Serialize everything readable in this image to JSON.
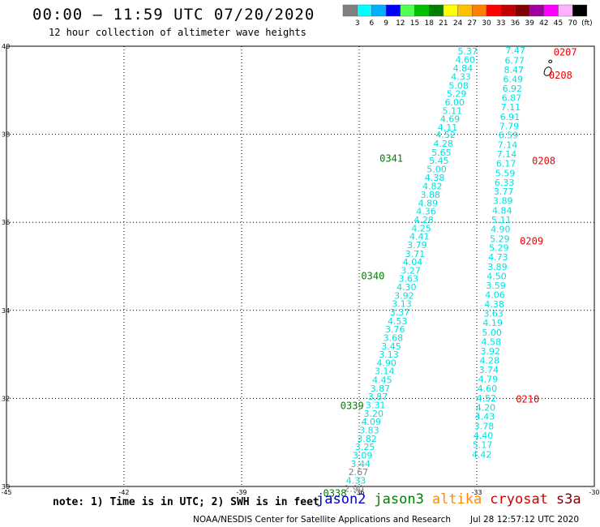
{
  "header": {
    "title": "00:00 – 11:59 UTC 07/20/2020",
    "subtitle": "12 hour collection of altimeter wave heights"
  },
  "colorbar": {
    "colors": [
      "#808080",
      "#00ffff",
      "#00b0ff",
      "#0000ff",
      "#50ff50",
      "#00c000",
      "#008000",
      "#ffff00",
      "#ffc000",
      "#ff8000",
      "#ff0000",
      "#c00000",
      "#800000",
      "#a000a0",
      "#ff00ff",
      "#ffb0ff",
      "#000000"
    ],
    "labels": [
      "3",
      "6",
      "9",
      "12",
      "15",
      "18",
      "21",
      "24",
      "27",
      "30",
      "33",
      "36",
      "39",
      "42",
      "45",
      "70",
      "(ft)"
    ]
  },
  "axes": {
    "x_ticks": [
      "-45",
      "-42",
      "-39",
      "-36",
      "-33",
      "-30"
    ],
    "y_ticks": [
      "40",
      "38",
      "36",
      "34",
      "32",
      "30"
    ]
  },
  "track_west": {
    "color": "#00e0e0",
    "points": [
      [
        "5.37",
        -32.98,
        39.89
      ],
      [
        "4.60",
        -33.04,
        39.7
      ],
      [
        "4.84",
        -33.1,
        39.5
      ],
      [
        "4.33",
        -33.15,
        39.31
      ],
      [
        "5.08",
        -33.21,
        39.11
      ],
      [
        "5.29",
        -33.26,
        38.92
      ],
      [
        "6.00",
        -33.31,
        38.73
      ],
      [
        "5.11",
        -33.37,
        38.54
      ],
      [
        "4.69",
        -33.43,
        38.35
      ],
      [
        "4.11",
        -33.49,
        38.16
      ],
      [
        "4.52",
        -33.54,
        37.99
      ],
      [
        "4.28",
        -33.6,
        37.79
      ],
      [
        "5.65",
        -33.65,
        37.59
      ],
      [
        "5.45",
        -33.71,
        37.4
      ],
      [
        "5.00",
        -33.77,
        37.21
      ],
      [
        "4.38",
        -33.82,
        37.02
      ],
      [
        "4.82",
        -33.88,
        36.82
      ],
      [
        "3.88",
        -33.93,
        36.63
      ],
      [
        "4.89",
        -33.99,
        36.44
      ],
      [
        "4.36",
        -34.04,
        36.25
      ],
      [
        "4.28",
        -34.1,
        36.06
      ],
      [
        "4.25",
        -34.16,
        35.87
      ],
      [
        "4.41",
        -34.21,
        35.68
      ],
      [
        "3.79",
        -34.27,
        35.49
      ],
      [
        "3.71",
        -34.32,
        35.29
      ],
      [
        "4.04",
        -34.38,
        35.1
      ],
      [
        "3.27",
        -34.43,
        34.91
      ],
      [
        "3.63",
        -34.49,
        34.72
      ],
      [
        "4.30",
        -34.54,
        34.53
      ],
      [
        "3.92",
        -34.6,
        34.34
      ],
      [
        "3.13",
        -34.66,
        34.15
      ],
      [
        "3.37",
        -34.71,
        33.96
      ],
      [
        "4.53",
        -34.77,
        33.76
      ],
      [
        "3.76",
        -34.83,
        33.57
      ],
      [
        "3.68",
        -34.88,
        33.38
      ],
      [
        "3.45",
        -34.93,
        33.19
      ],
      [
        "3.13",
        -34.99,
        33.0
      ],
      [
        "4.90",
        -35.05,
        32.81
      ],
      [
        "3.14",
        -35.1,
        32.62
      ],
      [
        "4.45",
        -35.16,
        32.42
      ],
      [
        "3.87",
        -35.21,
        32.23
      ],
      [
        "3.87",
        -35.27,
        32.04
      ],
      [
        "3.31",
        -35.33,
        31.85
      ],
      [
        "3.20",
        -35.38,
        31.66
      ],
      [
        "4.09",
        -35.44,
        31.47
      ],
      [
        "3.83",
        -35.49,
        31.28
      ],
      [
        "3.82",
        -35.55,
        31.09
      ],
      [
        "3.25",
        -35.6,
        30.9
      ],
      [
        "3.09",
        -35.66,
        30.71
      ],
      [
        "3.44",
        -35.71,
        30.52
      ],
      [
        "2.67",
        -35.77,
        30.33
      ],
      [
        "4.33",
        -35.83,
        30.14
      ],
      [
        "2.90",
        -35.88,
        29.95
      ]
    ]
  },
  "track_east": {
    "color": "#00e0e0",
    "points": [
      [
        "7.47",
        -31.76,
        39.91
      ],
      [
        "6.77",
        -31.78,
        39.68
      ],
      [
        "8.47",
        -31.8,
        39.47
      ],
      [
        "6.49",
        -31.82,
        39.25
      ],
      [
        "6.92",
        -31.84,
        39.04
      ],
      [
        "6.87",
        -31.86,
        38.83
      ],
      [
        "7.11",
        -31.88,
        38.62
      ],
      [
        "6.91",
        -31.9,
        38.4
      ],
      [
        "7.79",
        -31.92,
        38.19
      ],
      [
        "6.59",
        -31.94,
        37.98
      ],
      [
        "7.14",
        -31.96,
        37.76
      ],
      [
        "7.14",
        -31.98,
        37.55
      ],
      [
        "6.17",
        -32.0,
        37.34
      ],
      [
        "5.59",
        -32.02,
        37.12
      ],
      [
        "6.33",
        -32.04,
        36.91
      ],
      [
        "3.77",
        -32.06,
        36.7
      ],
      [
        "3.89",
        -32.08,
        36.49
      ],
      [
        "4.84",
        -32.1,
        36.27
      ],
      [
        "5.11",
        -32.12,
        36.06
      ],
      [
        "4.90",
        -32.14,
        35.85
      ],
      [
        "5.29",
        -32.16,
        35.63
      ],
      [
        "5.29",
        -32.18,
        35.42
      ],
      [
        "4.73",
        -32.2,
        35.21
      ],
      [
        "3.89",
        -32.22,
        34.99
      ],
      [
        "4.50",
        -32.24,
        34.78
      ],
      [
        "3.59",
        -32.26,
        34.57
      ],
      [
        "4.06",
        -32.28,
        34.36
      ],
      [
        "4.38",
        -32.3,
        34.14
      ],
      [
        "3.63",
        -32.32,
        33.93
      ],
      [
        "4.19",
        -32.34,
        33.72
      ],
      [
        "5.00",
        -32.36,
        33.5
      ],
      [
        "4.58",
        -32.38,
        33.29
      ],
      [
        "3.92",
        -32.4,
        33.08
      ],
      [
        "4.28",
        -32.42,
        32.86
      ],
      [
        "3.74",
        -32.44,
        32.65
      ],
      [
        "4.79",
        -32.46,
        32.44
      ],
      [
        "4.60",
        -32.48,
        32.23
      ],
      [
        "4.52",
        -32.5,
        32.01
      ],
      [
        "4.20",
        -32.52,
        31.8
      ],
      [
        "4.43",
        -32.54,
        31.59
      ],
      [
        "3.78",
        -32.56,
        31.37
      ],
      [
        "4.40",
        -32.58,
        31.16
      ],
      [
        "5.17",
        -32.6,
        30.95
      ],
      [
        "4.42",
        -32.62,
        30.73
      ]
    ]
  },
  "time_labels": [
    {
      "text": "0341",
      "lon": -35.48,
      "lat": 37.45,
      "color": "#008000"
    },
    {
      "text": "0340",
      "lon": -35.95,
      "lat": 34.78,
      "color": "#008000"
    },
    {
      "text": "0339",
      "lon": -36.48,
      "lat": 31.83,
      "color": "#008000"
    },
    {
      "text": "0338",
      "lon": -36.92,
      "lat": 29.84,
      "color": "#008000"
    },
    {
      "text": "0207",
      "lon": -31.04,
      "lat": 39.86,
      "color": "#ee0000"
    },
    {
      "text": "0208",
      "lon": -31.16,
      "lat": 39.34,
      "color": "#ee0000"
    },
    {
      "text": "0208",
      "lon": -31.59,
      "lat": 37.39,
      "color": "#ee0000"
    },
    {
      "text": "0209",
      "lon": -31.9,
      "lat": 35.57,
      "color": "#ee0000"
    },
    {
      "text": "0210",
      "lon": -32.0,
      "lat": 31.98,
      "color": "#ee0000"
    }
  ],
  "note": "note: 1) Time is in UTC; 2) SWH is in feet",
  "satellites": [
    {
      "name": "jason2",
      "color": "#0000cc"
    },
    {
      "name": "jason3",
      "color": "#008000"
    },
    {
      "name": "altika",
      "color": "#ff8c00"
    },
    {
      "name": "cryosat",
      "color": "#d00000"
    },
    {
      "name": "s3a",
      "color": "#800000"
    }
  ],
  "footer": {
    "left": "NOAA/NESDIS Center for Satellite Applications and Research",
    "right": "Jul 28 12:57:12 UTC 2020"
  }
}
